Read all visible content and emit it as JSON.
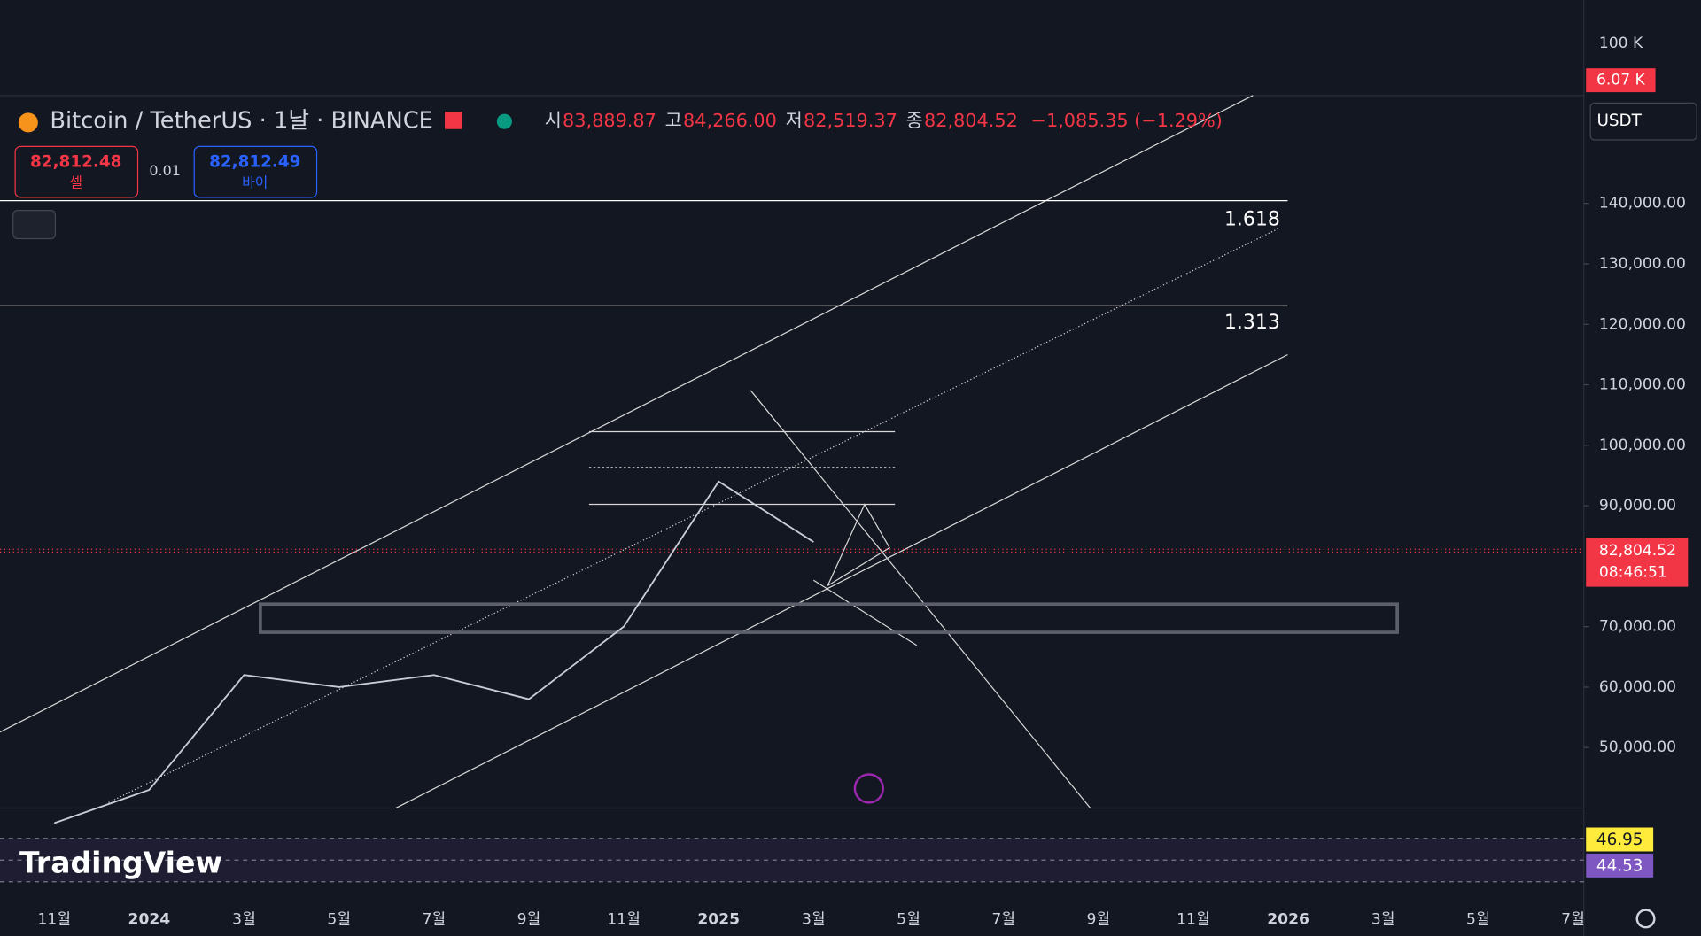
{
  "header": {
    "symbol": "Bitcoin / TetherUS · 1날 · BINANCE",
    "ohlc": [
      {
        "label": "시",
        "value": "83,889.87"
      },
      {
        "label": "고",
        "value": "84,266.00"
      },
      {
        "label": "저",
        "value": "82,519.37"
      },
      {
        "label": "종",
        "value": "82,804.52"
      }
    ],
    "change": "−1,085.35 (−1.29%)",
    "currency": "USDT"
  },
  "trade": {
    "sell_price": "82,812.48",
    "sell": "셀",
    "spread": "0.01",
    "buy_price": "82,812.49",
    "buy": "바이"
  },
  "volume": {
    "scale_label": "100 K",
    "last": "6.07 K"
  },
  "fib": [
    "1.618",
    "1.313"
  ],
  "countdown": "08:46:51",
  "rsi": {
    "signal": "46.95",
    "rsi": "44.53"
  },
  "logo": "TradingView",
  "chart_data": {
    "type": "line",
    "x": [
      "11월",
      "2024",
      "3월",
      "5월",
      "7월",
      "9월",
      "11월",
      "2025",
      "3월",
      "5월",
      "7월",
      "9월",
      "11월",
      "2026",
      "3월",
      "5월",
      "7월"
    ],
    "series": [
      {
        "name": "BTCUSDT",
        "color": "#c9cdd6",
        "values": [
          37500,
          43000,
          62000,
          60000,
          62000,
          58000,
          70000,
          94000,
          84000,
          null,
          null,
          null,
          null,
          null,
          null,
          null,
          null
        ]
      }
    ],
    "ylim": [
      40000,
      157500
    ],
    "yticks": [
      {
        "value": 50000,
        "label": "50,000.00"
      },
      {
        "value": 60000,
        "label": "60,000.00"
      },
      {
        "value": 70000,
        "label": "70,000.00"
      },
      {
        "value": 90000,
        "label": "90,000.00"
      },
      {
        "value": 100000,
        "label": "100,000.00"
      },
      {
        "value": 110000,
        "label": "110,000.00"
      },
      {
        "value": 120000,
        "label": "120,000.00"
      },
      {
        "value": 130000,
        "label": "130,000.00"
      },
      {
        "value": 140000,
        "label": "140,000.00"
      }
    ],
    "price_line": {
      "value": 82804.52,
      "label": "82,804.52"
    }
  }
}
